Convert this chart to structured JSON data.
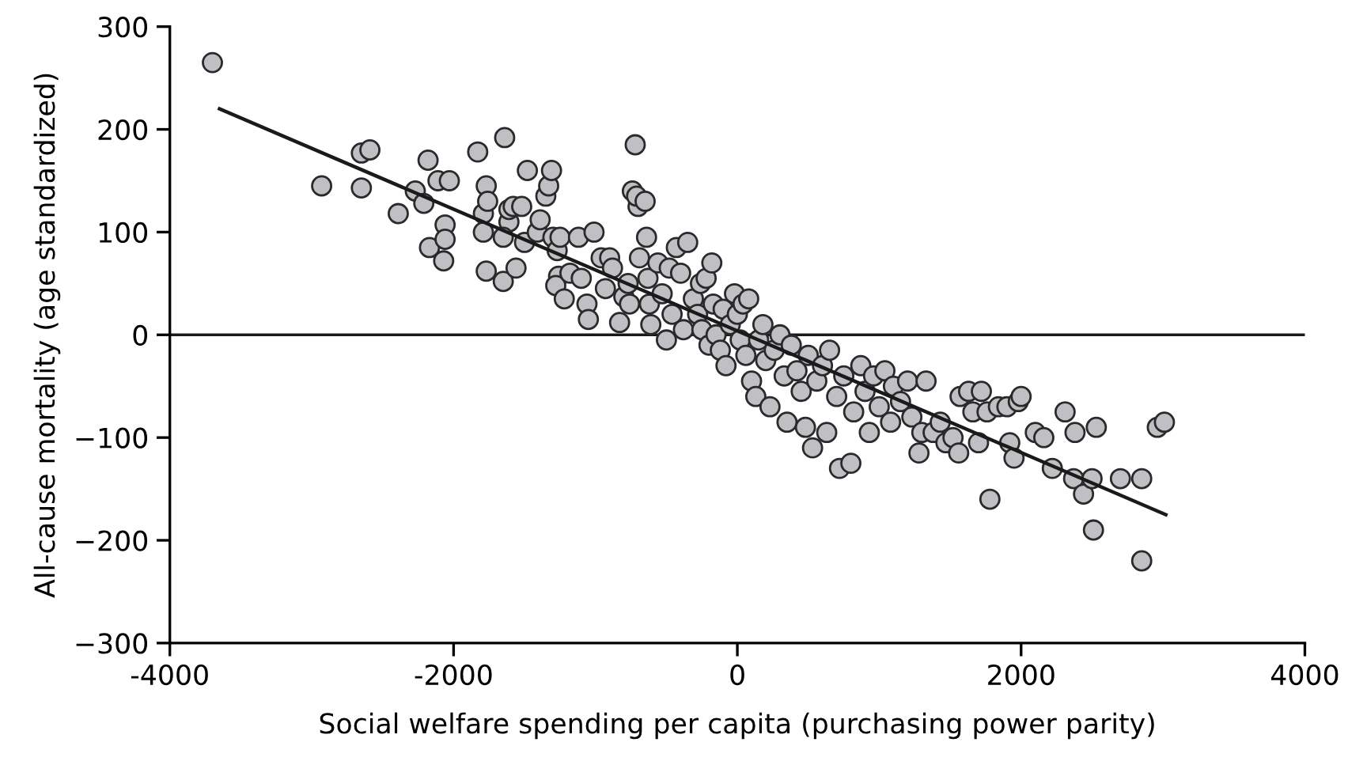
{
  "chart_data": {
    "type": "scatter",
    "xlabel": "Social welfare spending per capita (purchasing power parity)",
    "ylabel": "All-cause mortality (age standardized)",
    "xlim": [
      -4000,
      4000
    ],
    "xticks": [
      -4000,
      -2000,
      0,
      2000,
      4000
    ],
    "ylim": [
      -300,
      300
    ],
    "yticks": [
      {
        "value": -300,
        "label": "−300"
      },
      {
        "value": -200,
        "label": "−200"
      },
      {
        "value": -100,
        "label": "−100"
      },
      0,
      100,
      200,
      300
    ],
    "grid": false,
    "marker": "circle",
    "ref_lines": [
      {
        "axis": "y",
        "value": 0,
        "color": "#1a1a1a"
      }
    ],
    "series": [
      {
        "color": "#c0c0c4",
        "x": [
          -3700,
          -2930,
          -2650,
          -2650,
          -2590,
          -2390,
          -2270,
          -2210,
          -2180,
          -2170,
          -2110,
          -2060,
          -2060,
          -2070,
          -2030,
          -1830,
          -1790,
          -1790,
          -1770,
          -1760,
          -1770,
          -1640,
          -1610,
          -1650,
          -1650,
          -1610,
          -1580,
          -1560,
          -1500,
          -1520,
          -1480,
          -1410,
          -1390,
          -1350,
          -1330,
          -1310,
          -1300,
          -1270,
          -1260,
          -1280,
          -1220,
          -1250,
          -1180,
          -1120,
          -1100,
          -1060,
          -1050,
          -1010,
          -960,
          -930,
          -900,
          -880,
          -830,
          -800,
          -770,
          -760,
          -740,
          -720,
          -700,
          -710,
          -650,
          -690,
          -640,
          -630,
          -620,
          -610,
          -560,
          -530,
          -480,
          -500,
          -460,
          -430,
          -400,
          -380,
          -350,
          -310,
          -280,
          -260,
          -250,
          -220,
          -200,
          -180,
          -170,
          -150,
          -120,
          -100,
          -80,
          -50,
          -20,
          0,
          20,
          40,
          60,
          80,
          100,
          130,
          150,
          180,
          200,
          230,
          260,
          300,
          330,
          350,
          380,
          420,
          450,
          480,
          500,
          530,
          560,
          600,
          630,
          650,
          700,
          720,
          750,
          800,
          820,
          870,
          900,
          930,
          960,
          1000,
          1040,
          1080,
          1100,
          1150,
          1200,
          1230,
          1280,
          1300,
          1330,
          1380,
          1430,
          1470,
          1520,
          1560,
          1570,
          1630,
          1660,
          1700,
          1720,
          1760,
          1780,
          1840,
          1900,
          1920,
          1950,
          1980,
          2000,
          2100,
          2160,
          2220,
          2310,
          2370,
          2380,
          2440,
          2500,
          2510,
          2530,
          2700,
          2850,
          2850,
          2960,
          3010
        ],
        "values": [
          265,
          145,
          143,
          177,
          180,
          118,
          140,
          128,
          170,
          85,
          150,
          107,
          93,
          72,
          150,
          178,
          118,
          100,
          145,
          130,
          62,
          192,
          110,
          95,
          52,
          122,
          125,
          65,
          90,
          125,
          160,
          100,
          112,
          135,
          145,
          160,
          95,
          82,
          57,
          48,
          35,
          95,
          60,
          95,
          55,
          30,
          15,
          100,
          75,
          45,
          75,
          65,
          12,
          37,
          50,
          30,
          140,
          185,
          125,
          135,
          130,
          75,
          95,
          55,
          30,
          10,
          70,
          40,
          65,
          -5,
          20,
          85,
          60,
          5,
          90,
          35,
          20,
          50,
          5,
          55,
          -10,
          70,
          30,
          0,
          -15,
          25,
          -30,
          10,
          40,
          20,
          -5,
          30,
          -20,
          35,
          -45,
          -60,
          -5,
          10,
          -25,
          -70,
          -15,
          0,
          -40,
          -85,
          -10,
          -35,
          -55,
          -90,
          -20,
          -110,
          -45,
          -30,
          -95,
          -15,
          -60,
          -130,
          -40,
          -125,
          -75,
          -30,
          -55,
          -95,
          -40,
          -70,
          -35,
          -85,
          -50,
          -65,
          -45,
          -80,
          -115,
          -95,
          -45,
          -95,
          -85,
          -105,
          -100,
          -115,
          -60,
          -55,
          -75,
          -105,
          -55,
          -75,
          -160,
          -70,
          -70,
          -105,
          -120,
          -65,
          -60,
          -95,
          -100,
          -130,
          -75,
          -140,
          -95,
          -155,
          -140,
          -190,
          -90,
          -140,
          -140,
          -220,
          -90,
          -85
        ]
      },
      {
        "type": "line",
        "color": "#1a1a1a",
        "marker": "none",
        "x": [
          -3650,
          3020
        ],
        "values": [
          220,
          -175
        ]
      }
    ]
  }
}
